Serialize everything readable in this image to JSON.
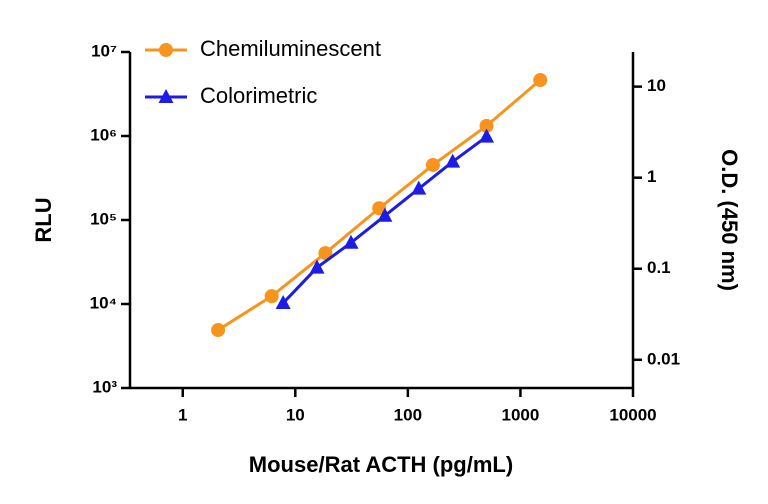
{
  "chart_data": {
    "type": "line",
    "xlabel": "Mouse/Rat ACTH (pg/mL)",
    "ylabel": "RLU",
    "y2label": "O.D. (450 nm)",
    "xscale": "log",
    "yscale": "log",
    "y2scale": "log",
    "xlim": [
      0.34,
      10000
    ],
    "xticks": [
      1,
      10,
      100,
      1000,
      10000
    ],
    "ylim": [
      1000,
      10000000
    ],
    "yticks": [
      {
        "value": 1000,
        "label": "10³"
      },
      {
        "value": 10000,
        "label": "10⁴"
      },
      {
        "value": 100000,
        "label": "10⁵"
      },
      {
        "value": 1000000,
        "label": "10⁶"
      },
      {
        "value": 10000000,
        "label": "10⁷"
      }
    ],
    "y2lim": [
      0.0049,
      24
    ],
    "y2ticks": [
      0.01,
      0.1,
      1,
      10
    ],
    "legend": "upper left",
    "series": [
      {
        "name": "Chemiluminescent",
        "color": "#f7941d",
        "marker": "circle",
        "x": [
          2.06,
          6.17,
          18.5,
          55.6,
          167,
          500,
          1500
        ],
        "values": [
          4900,
          12400,
          40400,
          138000,
          452000,
          1320000,
          4640000
        ]
      },
      {
        "name": "Colorimetric",
        "color": "#1c1ce6",
        "marker": "triangle",
        "axis": "y2",
        "x": [
          7.8,
          15.6,
          31.25,
          62.5,
          125,
          250,
          500
        ],
        "values": [
          0.042,
          0.103,
          0.193,
          0.382,
          0.757,
          1.5,
          2.82
        ]
      }
    ]
  }
}
